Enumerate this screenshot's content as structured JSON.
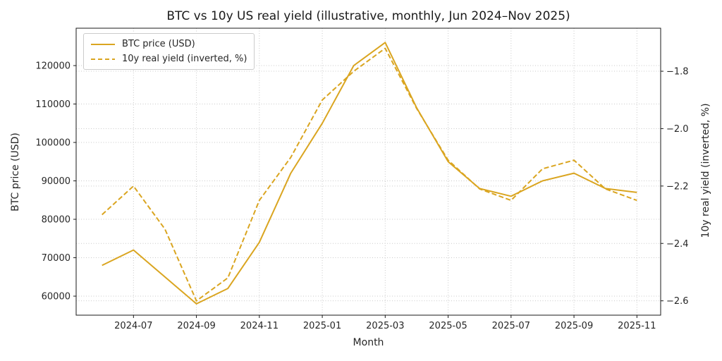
{
  "title": "BTC vs 10y US real yield (illustrative, monthly, Jun 2024–Nov 2025)",
  "colors": {
    "line": "#DAA520",
    "text": "#262626",
    "title_text": "#1a1a1a",
    "grid": "#c9c9c9",
    "spine": "#1a1a1a",
    "background": "#ffffff"
  },
  "chart_data": {
    "type": "line",
    "title": "BTC vs 10y US real yield (illustrative, monthly, Jun 2024–Nov 2025)",
    "xlabel": "Month",
    "ylabel_left": "BTC price (USD)",
    "ylabel_right": "10y real yield (inverted, %)",
    "grid": true,
    "legend_position": "upper left",
    "x": [
      "2024-06",
      "2024-07",
      "2024-08",
      "2024-09",
      "2024-10",
      "2024-11",
      "2024-12",
      "2025-01",
      "2025-02",
      "2025-03",
      "2025-04",
      "2025-05",
      "2025-06",
      "2025-07",
      "2025-08",
      "2025-09",
      "2025-10",
      "2025-11"
    ],
    "x_tick_indices": [
      1,
      3,
      5,
      7,
      9,
      11,
      13,
      15,
      17
    ],
    "x_tick_labels": [
      "2024-07",
      "2024-09",
      "2024-11",
      "2025-01",
      "2025-03",
      "2025-05",
      "2025-07",
      "2025-09",
      "2025-11"
    ],
    "left_axis": {
      "ticks": [
        60000,
        70000,
        80000,
        90000,
        100000,
        110000,
        120000
      ],
      "tick_labels": [
        "60000",
        "70000",
        "80000",
        "90000",
        "100000",
        "110000",
        "120000"
      ],
      "ylim": [
        55050,
        129730
      ]
    },
    "right_axis": {
      "ticks": [
        -1.8,
        -2.0,
        -2.2,
        -2.4,
        -2.6
      ],
      "tick_labels": [
        "−1.8",
        "−2.0",
        "−2.2",
        "−2.4",
        "−2.6"
      ],
      "ylim": [
        -2.65,
        -1.65
      ]
    },
    "series": [
      {
        "name": "BTC price (USD)",
        "axis": "left",
        "line_style": "solid",
        "color": "#DAA520",
        "values": [
          68000,
          72000,
          65000,
          58000,
          62000,
          74000,
          92000,
          105000,
          120000,
          126000,
          109000,
          95000,
          88000,
          86000,
          90000,
          92000,
          88000,
          87000
        ]
      },
      {
        "name": "10y real yield (inverted, %)",
        "axis": "right",
        "line_style": "dashed",
        "color": "#DAA520",
        "values": [
          -2.3,
          -2.2,
          -2.35,
          -2.6,
          -2.52,
          -2.25,
          -2.1,
          -1.9,
          -1.8,
          -1.72,
          -1.93,
          -2.11,
          -2.21,
          -2.25,
          -2.14,
          -2.11,
          -2.21,
          -2.25
        ]
      }
    ]
  }
}
